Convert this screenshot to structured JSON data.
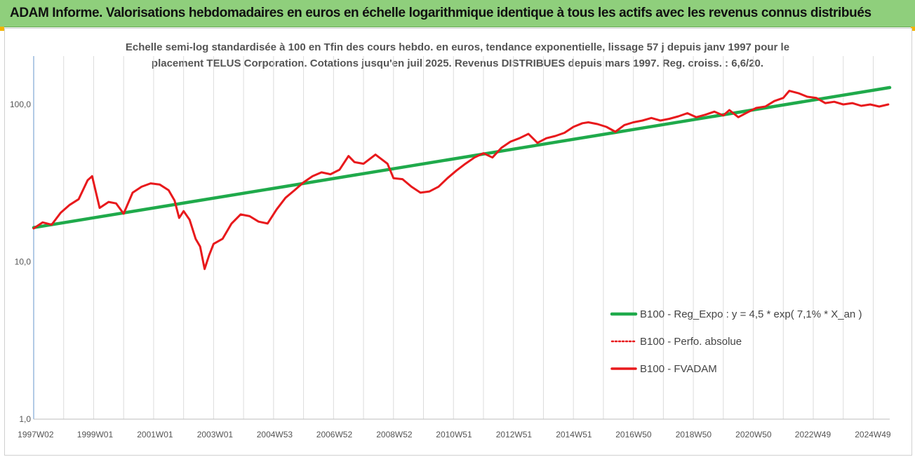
{
  "banner": {
    "title": "ADAM Informe. Valorisations hebdomadaires en euros en échelle logarithmique identique à tous les actifs avec les revenus connus distribués"
  },
  "colors": {
    "banner_bg": "#8fcf7c",
    "regression": "#1faa4b",
    "fvadam": "#e8191c",
    "perfo": "#e8191c",
    "grid": "#dcdcdc",
    "corner_accent": "#f2b400"
  },
  "chart_data": {
    "type": "line",
    "title_lines": [
      "Echelle semi-log standardisée à 100 en Tfin des cours hebdo. en euros, tendance exponentielle, lissage 57 j depuis janv 1997 pour le",
      "placement TELUS Corporation. Cotations jusqu'en juil 2025. Revenus DISTRIBUES depuis mars 1997. Reg. croiss. : 6,6/20."
    ],
    "x_range": [
      1997.0,
      2025.55
    ],
    "y_scale": "log",
    "y_range": [
      1.0,
      200
    ],
    "y_ticks": [
      {
        "value": 1,
        "label": "1,0"
      },
      {
        "value": 10,
        "label": "10,0"
      },
      {
        "value": 100,
        "label": "100,0"
      }
    ],
    "x_ticks": [
      {
        "value": 1997.02,
        "label": "1997W02"
      },
      {
        "value": 1999.0,
        "label": "1999W01"
      },
      {
        "value": 2001.0,
        "label": "2001W01"
      },
      {
        "value": 2003.0,
        "label": "2003W01"
      },
      {
        "value": 2004.99,
        "label": "2004W53"
      },
      {
        "value": 2006.98,
        "label": "2006W52"
      },
      {
        "value": 2008.98,
        "label": "2008W52"
      },
      {
        "value": 2010.97,
        "label": "2010W51"
      },
      {
        "value": 2012.97,
        "label": "2012W51"
      },
      {
        "value": 2014.97,
        "label": "2014W51"
      },
      {
        "value": 2016.96,
        "label": "2016W50"
      },
      {
        "value": 2018.96,
        "label": "2018W50"
      },
      {
        "value": 2020.96,
        "label": "2020W50"
      },
      {
        "value": 2022.94,
        "label": "2022W49"
      },
      {
        "value": 2024.94,
        "label": "2024W49"
      }
    ],
    "grid": "vertical",
    "legend_position": "bottom-right",
    "series": [
      {
        "name": "B100 - Reg_Expo : y = 4,5 * exp( 7,1% *  X_an )",
        "style": "solid-thick",
        "color": "#1faa4b",
        "x": [
          1997.0,
          2025.55
        ],
        "y": [
          16.5,
          128
        ]
      },
      {
        "name": "B100 - Perfo. absolue",
        "style": "dotted",
        "color": "#e8191c",
        "x": [],
        "y": []
      },
      {
        "name": "B100 - FVADAM",
        "style": "solid",
        "color": "#e8191c",
        "x": [
          1997.0,
          1997.3,
          1997.6,
          1997.9,
          1998.2,
          1998.5,
          1998.8,
          1998.95,
          1999.2,
          1999.5,
          1999.75,
          2000.0,
          2000.3,
          2000.6,
          2000.9,
          2001.2,
          2001.5,
          2001.7,
          2001.85,
          2002.0,
          2002.2,
          2002.4,
          2002.55,
          2002.7,
          2002.85,
          2003.0,
          2003.3,
          2003.6,
          2003.9,
          2004.2,
          2004.5,
          2004.8,
          2005.1,
          2005.4,
          2005.7,
          2006.0,
          2006.3,
          2006.6,
          2006.9,
          2007.2,
          2007.5,
          2007.7,
          2008.0,
          2008.4,
          2008.8,
          2009.0,
          2009.3,
          2009.6,
          2009.9,
          2010.2,
          2010.5,
          2010.8,
          2011.1,
          2011.4,
          2011.7,
          2012.0,
          2012.3,
          2012.6,
          2012.9,
          2013.2,
          2013.5,
          2013.8,
          2014.1,
          2014.4,
          2014.7,
          2015.0,
          2015.3,
          2015.5,
          2015.8,
          2016.1,
          2016.4,
          2016.7,
          2017.0,
          2017.3,
          2017.6,
          2017.9,
          2018.2,
          2018.5,
          2018.8,
          2019.1,
          2019.4,
          2019.7,
          2020.0,
          2020.2,
          2020.5,
          2020.8,
          2021.1,
          2021.4,
          2021.7,
          2022.0,
          2022.2,
          2022.5,
          2022.8,
          2023.1,
          2023.4,
          2023.7,
          2024.0,
          2024.3,
          2024.6,
          2024.9,
          2025.2,
          2025.5
        ],
        "y": [
          16.3,
          17.8,
          17.2,
          20.5,
          23.0,
          25.0,
          33.0,
          35.0,
          22.0,
          24.0,
          23.5,
          20.2,
          27.5,
          30.0,
          31.5,
          31.0,
          28.5,
          24.5,
          19.0,
          21.0,
          18.5,
          14.0,
          12.5,
          9.0,
          11.0,
          13.0,
          14.0,
          17.5,
          20.0,
          19.5,
          18.0,
          17.5,
          21.5,
          25.5,
          28.5,
          32.0,
          35.0,
          37.0,
          36.0,
          38.5,
          47.0,
          43.0,
          42.0,
          48.0,
          42.0,
          34.0,
          33.5,
          30.0,
          27.5,
          28.0,
          30.0,
          34.0,
          38.0,
          42.0,
          46.0,
          49.0,
          46.0,
          53.0,
          58.0,
          61.0,
          65.0,
          57.0,
          61.0,
          63.0,
          66.0,
          72.0,
          76.0,
          77.0,
          75.0,
          72.0,
          67.0,
          74.0,
          77.0,
          79.0,
          82.0,
          79.0,
          81.0,
          84.0,
          88.0,
          83.0,
          86.0,
          90.0,
          85.0,
          92.0,
          83.0,
          89.0,
          95.0,
          97.0,
          105.0,
          110.0,
          122.0,
          118.0,
          112.0,
          110.0,
          102.0,
          104.0,
          100.0,
          102.0,
          98.0,
          100.0,
          97.0,
          100.0
        ]
      }
    ]
  }
}
